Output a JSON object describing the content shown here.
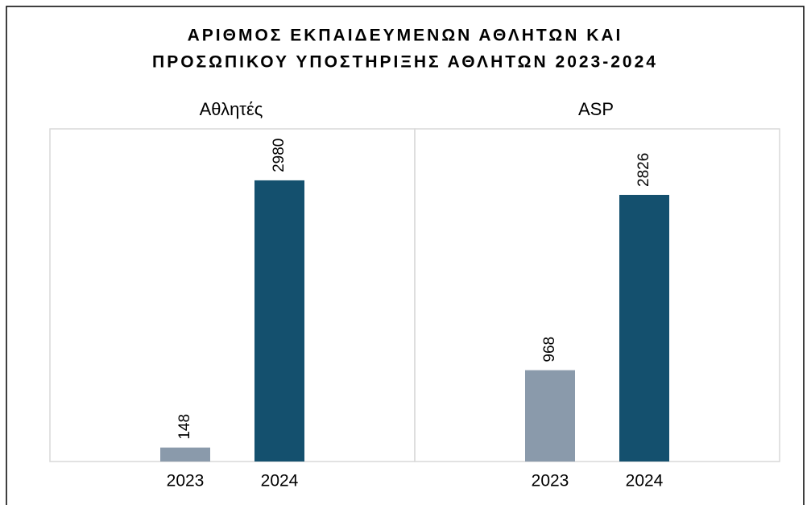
{
  "title": [
    "ΑΡΙΘΜΟΣ ΕΚΠΑΙΔΕΥΜΕΝΩΝ ΑΘΛΗΤΩΝ ΚΑΙ",
    "ΠΡΟΣΩΠΙΚΟΥ ΥΠΟΣΤΗΡΙΞΗΣ ΑΘΛΗΤΩΝ 2023-2024"
  ],
  "chart_data": [
    {
      "type": "bar",
      "title": "Αθλητές",
      "categories": [
        "2023",
        "2024"
      ],
      "values": [
        148,
        2980
      ],
      "colors": [
        "#8a9aab",
        "#14506e"
      ],
      "ylim": [
        0,
        3500
      ]
    },
    {
      "type": "bar",
      "title": "ASP",
      "categories": [
        "2023",
        "2024"
      ],
      "values": [
        968,
        2826
      ],
      "colors": [
        "#8a9aab",
        "#14506e"
      ],
      "ylim": [
        0,
        3500
      ]
    }
  ]
}
